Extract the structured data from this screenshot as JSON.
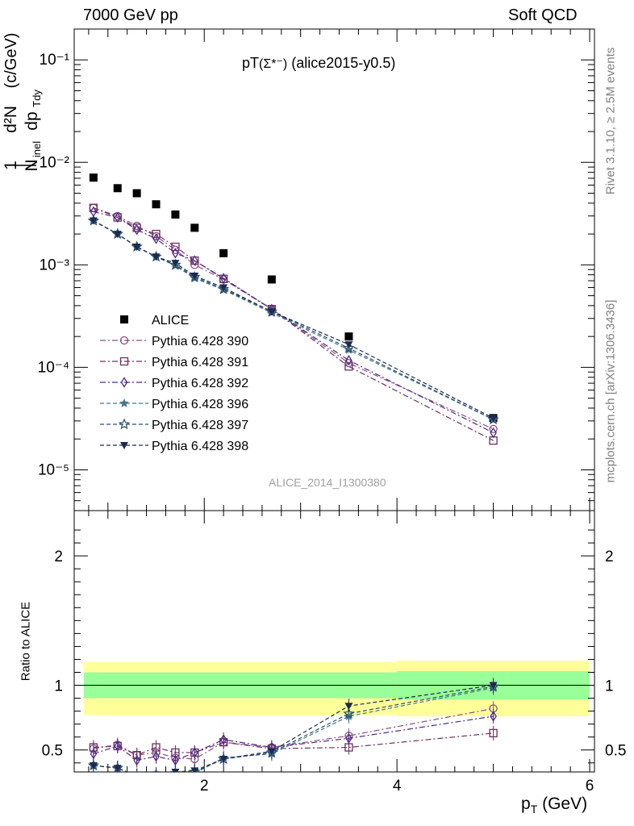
{
  "header": {
    "left": "7000 GeV pp",
    "right": "Soft QCD"
  },
  "title": {
    "main": "pT",
    "paren": "(Σ*⁻)",
    "tag": "(alice2015-y0.5)"
  },
  "side_text": {
    "rivet": "Rivet 3.1.10, ≥ 2.5M events",
    "mcplots": "mcplots.cern.ch [arXiv:1306.3436]"
  },
  "analysis_id": "ALICE_2014_I1300380",
  "ratio_ylabel": "Ratio to ALICE",
  "x_label": {
    "main": "p",
    "sub": "T",
    "unit": " (GeV)"
  },
  "main_ylabel": {
    "num": "1",
    "den": "N",
    "den_sub": "inel",
    "frac_num": "d²N",
    "frac_den": "dp",
    "frac_den_sub": "Tdy",
    "unit": "(c/GeV)"
  },
  "colors": {
    "alice": "#000000",
    "p390": "#8a5080",
    "p391": "#6e2f5e",
    "p392": "#4b2a8a",
    "p396": "#46788a",
    "p397": "#2e4f6e",
    "p398": "#1b2a50",
    "band_yellow": "#ffff99",
    "band_green": "#99ff99"
  },
  "chart_data": [
    {
      "type": "scatter",
      "x_scale": "linear",
      "y_scale": "log",
      "xlim": [
        0.65,
        6.05
      ],
      "ylim": [
        4e-06,
        0.2
      ],
      "y_ticks": [
        "10⁻¹",
        "10⁻²",
        "10⁻³",
        "10⁻⁴",
        "10⁻⁵"
      ],
      "legend_position": "middle-left",
      "x": [
        0.85,
        1.1,
        1.3,
        1.5,
        1.7,
        1.9,
        2.2,
        2.7,
        3.5,
        5.0
      ],
      "series": [
        {
          "name": "ALICE",
          "marker": "square-filled",
          "values": [
            0.0071,
            0.0056,
            0.005,
            0.0039,
            0.0031,
            0.0023,
            0.0013,
            0.00072,
            0.0002,
            3.2e-05
          ]
        },
        {
          "name": "Pythia 6.428 390",
          "marker": "circle-open",
          "line": "dashdot",
          "values": [
            0.0036,
            0.003,
            0.0024,
            0.0019,
            0.0014,
            0.001,
            0.00072,
            0.00037,
            0.00011,
            2.5e-05
          ]
        },
        {
          "name": "Pythia 6.428 391",
          "marker": "square-open",
          "line": "dashdot",
          "values": [
            0.0036,
            0.0029,
            0.0023,
            0.002,
            0.0015,
            0.0011,
            0.00073,
            0.00037,
            0.000102,
            1.93e-05
          ]
        },
        {
          "name": "Pythia 6.428 392",
          "marker": "diamond-open",
          "line": "dashdot",
          "values": [
            0.0033,
            0.0029,
            0.0022,
            0.0018,
            0.0013,
            0.0011,
            0.00074,
            0.00037,
            0.000117,
            2.3e-05
          ]
        },
        {
          "name": "Pythia 6.428 396",
          "marker": "star-filled",
          "line": "dashed",
          "values": [
            0.0027,
            0.002,
            0.0015,
            0.0012,
            0.00098,
            0.00074,
            0.00057,
            0.00034,
            0.000148,
            3.1e-05
          ]
        },
        {
          "name": "Pythia 6.428 397",
          "marker": "star-open",
          "line": "dashed",
          "values": [
            0.0027,
            0.002,
            0.0015,
            0.0012,
            0.001,
            0.00076,
            0.00058,
            0.00035,
            0.000154,
            3.1e-05
          ]
        },
        {
          "name": "Pythia 6.428 398",
          "marker": "triangle-down-filled",
          "line": "dashed",
          "values": [
            0.0027,
            0.002,
            0.0015,
            0.0012,
            0.00104,
            0.00078,
            0.0006,
            0.00035,
            0.000167,
            3.2e-05
          ]
        }
      ]
    },
    {
      "type": "line",
      "x_scale": "linear",
      "y_scale": "linear",
      "xlim": [
        0.65,
        6.05
      ],
      "ylim": [
        0.33,
        2.35
      ],
      "x_ticks": [
        "2",
        "4",
        "6"
      ],
      "y_ticks": [
        "0.5",
        "1",
        "2"
      ],
      "bands": [
        {
          "name": "yellow",
          "segments": [
            [
              0.75,
              4.0,
              0.77,
              1.18
            ],
            [
              4.0,
              6.0,
              0.76,
              1.19
            ]
          ]
        },
        {
          "name": "green",
          "segments": [
            [
              0.75,
              4.0,
              0.9,
              1.1
            ],
            [
              4.0,
              6.0,
              0.89,
              1.11
            ]
          ]
        }
      ],
      "x": [
        0.85,
        1.1,
        1.3,
        1.5,
        1.7,
        1.9,
        2.2,
        2.7,
        3.5,
        5.0
      ],
      "series": [
        {
          "name": "Pythia 6.428 390",
          "values": [
            0.51,
            0.54,
            0.46,
            0.48,
            0.44,
            0.43,
            0.56,
            0.52,
            0.61,
            0.82
          ]
        },
        {
          "name": "Pythia 6.428 391",
          "values": [
            0.52,
            0.53,
            0.46,
            0.52,
            0.48,
            0.48,
            0.56,
            0.51,
            0.52,
            0.63
          ]
        },
        {
          "name": "Pythia 6.428 392",
          "values": [
            0.47,
            0.53,
            0.42,
            0.45,
            0.42,
            0.48,
            0.58,
            0.52,
            0.59,
            0.76
          ]
        },
        {
          "name": "Pythia 6.428 396",
          "values": [
            0.38,
            0.36,
            0.3,
            0.31,
            0.32,
            0.32,
            0.44,
            0.47,
            0.76,
            0.98
          ]
        },
        {
          "name": "Pythia 6.428 397",
          "values": [
            0.38,
            0.36,
            0.3,
            0.31,
            0.32,
            0.33,
            0.43,
            0.48,
            0.78,
            0.99
          ]
        },
        {
          "name": "Pythia 6.428 398",
          "values": [
            0.38,
            0.36,
            0.3,
            0.31,
            0.33,
            0.34,
            0.43,
            0.49,
            0.84,
            1.0
          ]
        }
      ]
    }
  ]
}
